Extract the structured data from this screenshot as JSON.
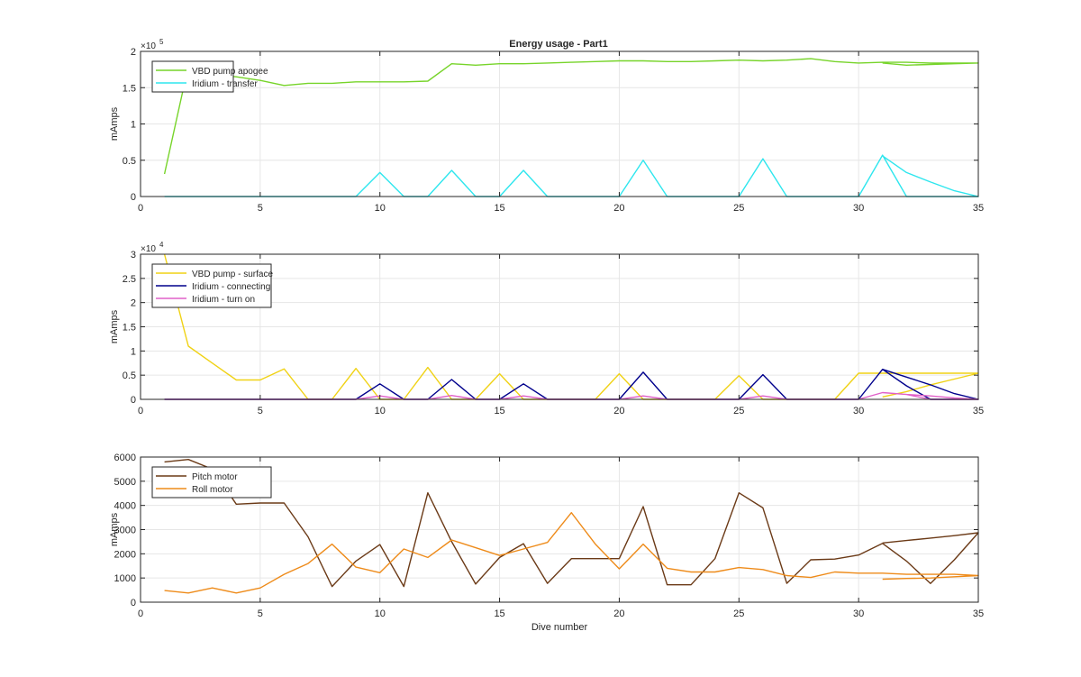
{
  "figure": {
    "title": "Energy usage - Part1"
  },
  "chart_data": [
    {
      "type": "line",
      "title": "Energy usage - Part1",
      "xlabel": "",
      "ylabel": "mAmps",
      "xlim": [
        0,
        35
      ],
      "ylim": [
        0,
        200000
      ],
      "exponent_label": "×10",
      "exponent_power": "5",
      "xticks": [
        0,
        5,
        10,
        15,
        20,
        25,
        30,
        35
      ],
      "xtick_labels": [
        "0",
        "5",
        "10",
        "15",
        "20",
        "25",
        "30",
        "35"
      ],
      "yticks": [
        0,
        50000,
        100000,
        150000,
        200000
      ],
      "ytick_labels": [
        "0",
        "0.5",
        "1",
        "1.5",
        "2"
      ],
      "grid": true,
      "legend_position": "top-left",
      "series": [
        {
          "name": "VBD pump apogee",
          "color": "#77d42a",
          "x": [
            1,
            2,
            3,
            4,
            5,
            6,
            7,
            8,
            9,
            10,
            11,
            12,
            13,
            14,
            15,
            16,
            17,
            18,
            19,
            20,
            21,
            22,
            23,
            24,
            25,
            26,
            27,
            28,
            29,
            30,
            31,
            32,
            33,
            34,
            35,
            34,
            33,
            32,
            31
          ],
          "y": [
            31000,
            180000,
            168000,
            165000,
            160000,
            153000,
            156000,
            156000,
            158000,
            158000,
            158000,
            159000,
            183000,
            181000,
            183000,
            183000,
            184000,
            185000,
            186000,
            187000,
            187000,
            186000,
            186000,
            187000,
            188000,
            187000,
            188000,
            190000,
            186000,
            184000,
            185000,
            185000,
            184000,
            184000,
            184000,
            183000,
            182000,
            181000,
            184000
          ]
        },
        {
          "name": "Iridium - transfer",
          "color": "#2ee6ee",
          "x": [
            1,
            2,
            3,
            4,
            5,
            6,
            7,
            8,
            9,
            10,
            11,
            12,
            13,
            14,
            15,
            16,
            17,
            18,
            19,
            20,
            21,
            22,
            23,
            24,
            25,
            26,
            27,
            28,
            29,
            30,
            31,
            32,
            33,
            34,
            35,
            34,
            33,
            32,
            31
          ],
          "y": [
            0,
            0,
            0,
            0,
            0,
            0,
            0,
            0,
            0,
            33000,
            0,
            0,
            36000,
            0,
            0,
            36000,
            0,
            0,
            0,
            0,
            50000,
            0,
            0,
            0,
            0,
            52000,
            0,
            0,
            0,
            0,
            57000,
            0,
            0,
            0,
            0,
            8000,
            20000,
            33000,
            56000
          ]
        }
      ]
    },
    {
      "type": "line",
      "title": "",
      "xlabel": "",
      "ylabel": "mAmps",
      "xlim": [
        0,
        35
      ],
      "ylim": [
        0,
        30000
      ],
      "exponent_label": "×10",
      "exponent_power": "4",
      "xticks": [
        0,
        5,
        10,
        15,
        20,
        25,
        30,
        35
      ],
      "xtick_labels": [
        "0",
        "5",
        "10",
        "15",
        "20",
        "25",
        "30",
        "35"
      ],
      "yticks": [
        0,
        5000,
        10000,
        15000,
        20000,
        25000,
        30000
      ],
      "ytick_labels": [
        "0",
        "0.5",
        "1",
        "1.5",
        "2",
        "2.5",
        "3"
      ],
      "grid": true,
      "legend_position": "top-left",
      "series": [
        {
          "name": "VBD pump - surface",
          "color": "#f0d215",
          "x": [
            1,
            2,
            3,
            4,
            5,
            6,
            7,
            8,
            9,
            10,
            11,
            12,
            13,
            14,
            15,
            16,
            17,
            18,
            19,
            20,
            21,
            22,
            23,
            24,
            25,
            26,
            27,
            28,
            29,
            30,
            31,
            32,
            33,
            34,
            35,
            34,
            33,
            32,
            31
          ],
          "y": [
            30000,
            11000,
            7500,
            4000,
            4000,
            6300,
            0,
            0,
            6400,
            0,
            0,
            6600,
            0,
            0,
            5300,
            0,
            0,
            0,
            0,
            5300,
            0,
            0,
            0,
            0,
            4900,
            0,
            0,
            0,
            0,
            5400,
            5400,
            5400,
            5400,
            5400,
            5400,
            4200,
            3000,
            1600,
            500
          ]
        },
        {
          "name": "Iridium - connecting",
          "color": "#00008c",
          "x": [
            1,
            2,
            3,
            4,
            5,
            6,
            7,
            8,
            9,
            10,
            11,
            12,
            13,
            14,
            15,
            16,
            17,
            18,
            19,
            20,
            21,
            22,
            23,
            24,
            25,
            26,
            27,
            28,
            29,
            30,
            31,
            32,
            33,
            34,
            35,
            34,
            33,
            32,
            31
          ],
          "y": [
            0,
            0,
            0,
            0,
            0,
            0,
            0,
            0,
            0,
            3200,
            0,
            0,
            4100,
            0,
            0,
            3200,
            0,
            0,
            0,
            0,
            5600,
            0,
            0,
            0,
            0,
            5100,
            0,
            0,
            0,
            0,
            6200,
            2800,
            0,
            0,
            0,
            1200,
            3000,
            4600,
            6200
          ]
        },
        {
          "name": "Iridium - turn on",
          "color": "#e060c8",
          "x": [
            1,
            2,
            3,
            4,
            5,
            6,
            7,
            8,
            9,
            10,
            11,
            12,
            13,
            14,
            15,
            16,
            17,
            18,
            19,
            20,
            21,
            22,
            23,
            24,
            25,
            26,
            27,
            28,
            29,
            30,
            31,
            32,
            33,
            34,
            35,
            34,
            33,
            32,
            31
          ],
          "y": [
            0,
            0,
            0,
            0,
            0,
            0,
            0,
            0,
            0,
            700,
            0,
            0,
            800,
            0,
            0,
            700,
            0,
            0,
            0,
            0,
            700,
            0,
            0,
            0,
            0,
            700,
            0,
            0,
            0,
            0,
            1400,
            1000,
            0,
            0,
            0,
            300,
            700,
            1000,
            1400
          ]
        }
      ]
    },
    {
      "type": "line",
      "title": "",
      "xlabel": "Dive number",
      "ylabel": "mAmps",
      "xlim": [
        0,
        35
      ],
      "ylim": [
        0,
        6000
      ],
      "exponent_label": "",
      "exponent_power": "",
      "xticks": [
        0,
        5,
        10,
        15,
        20,
        25,
        30,
        35
      ],
      "xtick_labels": [
        "0",
        "5",
        "10",
        "15",
        "20",
        "25",
        "30",
        "35"
      ],
      "yticks": [
        0,
        1000,
        2000,
        3000,
        4000,
        5000,
        6000
      ],
      "ytick_labels": [
        "0",
        "1000",
        "2000",
        "3000",
        "4000",
        "5000",
        "6000"
      ],
      "grid": true,
      "legend_position": "top-left",
      "series": [
        {
          "name": "Pitch motor",
          "color": "#6b3a17",
          "x": [
            1,
            2,
            3,
            4,
            5,
            6,
            7,
            8,
            9,
            10,
            11,
            12,
            13,
            14,
            15,
            16,
            17,
            18,
            19,
            20,
            21,
            22,
            23,
            24,
            25,
            26,
            27,
            28,
            29,
            30,
            31,
            32,
            33,
            34,
            35,
            34,
            33,
            32,
            31
          ],
          "y": [
            5800,
            5900,
            5500,
            4050,
            4100,
            4100,
            2700,
            650,
            1700,
            2380,
            650,
            4520,
            2500,
            750,
            1850,
            2420,
            780,
            1800,
            1800,
            1800,
            3950,
            720,
            720,
            1800,
            4520,
            3900,
            780,
            1750,
            1780,
            1950,
            2430,
            1700,
            770,
            1750,
            2870,
            2750,
            2650,
            2550,
            2450
          ]
        },
        {
          "name": "Roll motor",
          "color": "#ee8b1a",
          "x": [
            1,
            2,
            3,
            4,
            5,
            6,
            7,
            8,
            9,
            10,
            11,
            12,
            13,
            14,
            15,
            16,
            17,
            18,
            19,
            20,
            21,
            22,
            23,
            24,
            25,
            26,
            27,
            28,
            29,
            30,
            31,
            32,
            33,
            34,
            35,
            34,
            33,
            32,
            31
          ],
          "y": [
            480,
            380,
            590,
            380,
            590,
            1150,
            1600,
            2400,
            1450,
            1220,
            2200,
            1850,
            2570,
            2250,
            1930,
            2200,
            2470,
            3700,
            2400,
            1380,
            2400,
            1400,
            1250,
            1250,
            1430,
            1350,
            1100,
            1020,
            1250,
            1200,
            1200,
            1150,
            1150,
            1150,
            1100,
            1050,
            1000,
            980,
            950
          ]
        }
      ]
    }
  ]
}
